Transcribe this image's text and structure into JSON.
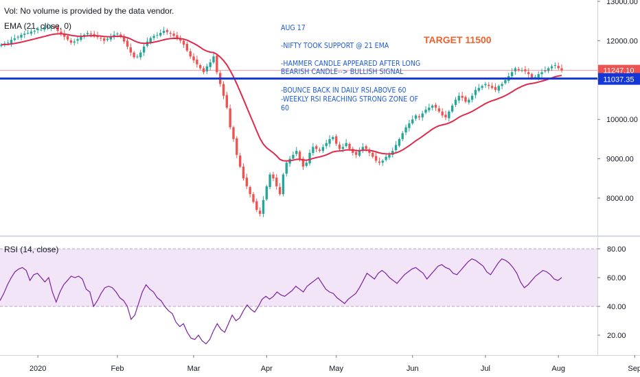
{
  "legend": {
    "vol_note": "Vol: No volume is provided by the data vendor.",
    "ema_label": "EMA (21, close, 0)",
    "rsi_label": "RSI (14, close)"
  },
  "annotations": {
    "date": "AUG 17",
    "line1": "-NIFTY TOOK SUPPORT @ 21 EMA",
    "line2a": "-HAMMER CANDLE APPEARED AFTER LONG",
    "line2b": "BEARISH CANDLE--> BULLISH SIGNAL",
    "line3a": "-BOUNCE BACK IN DAILY RSI,ABOVE 60",
    "line3b": "-WEEKLY RSI REACHING STRONG ZONE OF",
    "line3c": "60",
    "target": "TARGET 11500"
  },
  "colors": {
    "up": "#26a69a",
    "down": "#ef5350",
    "ema": "#e0294a",
    "rsi": "#7b1fa2",
    "rsi_band": "#f3e5f8",
    "support": "#1436d6",
    "last_price": "#ef5350",
    "annotation": "#1e5ad6",
    "target": "#f2602c"
  },
  "chart_data": [
    {
      "type": "candlestick",
      "series": [
        {
          "name": "NIFTY",
          "note": "daily OHLC, approximate"
        },
        {
          "name": "EMA (21, close, 0)"
        }
      ],
      "ylim": [
        7100,
        13000
      ],
      "y_ticks": [
        "8000.00",
        "9000.00",
        "10000.00",
        "11000.00",
        "12000.00",
        "13000.00"
      ],
      "x_ticks": [
        "2020",
        "Feb",
        "Mar",
        "Apr",
        "May",
        "Jun",
        "Jul",
        "Aug",
        "Sep"
      ],
      "last_price_label": "11247.10",
      "support_level": 11037.35,
      "support_label": "11037.35",
      "target_level": 11500,
      "closes": [
        11900,
        11930,
        11950,
        12020,
        12060,
        12100,
        12150,
        12180,
        12200,
        12230,
        12250,
        12300,
        12280,
        12320,
        12352,
        12356,
        12330,
        12250,
        12180,
        12100,
        12030,
        11950,
        11980,
        12040,
        12100,
        12150,
        12200,
        12170,
        12110,
        12090,
        12060,
        12000,
        12050,
        12100,
        12150,
        12180,
        12100,
        11980,
        11850,
        11700,
        11580,
        11600,
        11700,
        11850,
        11980,
        12070,
        12120,
        12150,
        12200,
        12250,
        12220,
        12180,
        12120,
        12060,
        12000,
        11900,
        11750,
        11600,
        11500,
        11400,
        11300,
        11200,
        11350,
        11450,
        11600,
        11200,
        10900,
        10600,
        10300,
        9800,
        9500,
        9100,
        8800,
        8500,
        8300,
        8100,
        7900,
        7700,
        7600,
        7950,
        8300,
        8600,
        8500,
        8300,
        8100,
        8600,
        8900,
        9000,
        9100,
        9200,
        9000,
        8800,
        8900,
        9150,
        9300,
        9250,
        9200,
        9300,
        9400,
        9500,
        9550,
        9380,
        9250,
        9300,
        9400,
        9250,
        9150,
        9100,
        9200,
        9300,
        9250,
        9150,
        9050,
        8950,
        8900,
        8950,
        9050,
        9100,
        9200,
        9350,
        9500,
        9650,
        9800,
        9900,
        10000,
        10100,
        10050,
        10150,
        10250,
        10300,
        10350,
        10300,
        10200,
        10100,
        10050,
        10200,
        10350,
        10500,
        10600,
        10550,
        10450,
        10500,
        10600,
        10750,
        10800,
        10850,
        10900,
        10850,
        10800,
        10750,
        10850,
        10900,
        11000,
        11100,
        11200,
        11300,
        11250,
        11250,
        11220,
        11150,
        11050,
        11080,
        11150,
        11200,
        11250,
        11300,
        11350,
        11380,
        11300,
        11247
      ]
    },
    {
      "type": "line",
      "series": [
        {
          "name": "RSI (14, close)"
        }
      ],
      "ylim": [
        5,
        85
      ],
      "band": [
        40,
        80
      ],
      "y_ticks": [
        "20.00",
        "40.00",
        "60.00",
        "80.00"
      ],
      "values": [
        44,
        49,
        55,
        60,
        64,
        66,
        67,
        65,
        58,
        62,
        63,
        60,
        57,
        60,
        50,
        43,
        50,
        55,
        58,
        61,
        60,
        61,
        59,
        52,
        50,
        40,
        44,
        49,
        53,
        54,
        53,
        50,
        46,
        44,
        40,
        31,
        34,
        42,
        50,
        55,
        52,
        50,
        46,
        44,
        40,
        37,
        35,
        29,
        26,
        28,
        22,
        18,
        17,
        20,
        16,
        14,
        17,
        23,
        28,
        24,
        22,
        28,
        34,
        30,
        32,
        37,
        41,
        38,
        36,
        40,
        45,
        47,
        45,
        47,
        50,
        48,
        47,
        49,
        51,
        54,
        52,
        50,
        54,
        56,
        58,
        60,
        56,
        52,
        50,
        49,
        46,
        44,
        42,
        45,
        47,
        49,
        53,
        58,
        63,
        61,
        59,
        63,
        65,
        63,
        60,
        58,
        56,
        59,
        62,
        64,
        66,
        67,
        65,
        63,
        59,
        62,
        65,
        68,
        69,
        67,
        66,
        63,
        62,
        65,
        68,
        71,
        73,
        72,
        70,
        68,
        64,
        62,
        66,
        70,
        73,
        72,
        70,
        67,
        63,
        57,
        53,
        55,
        58,
        61,
        63,
        65,
        64,
        62,
        59,
        58,
        60
      ]
    }
  ]
}
